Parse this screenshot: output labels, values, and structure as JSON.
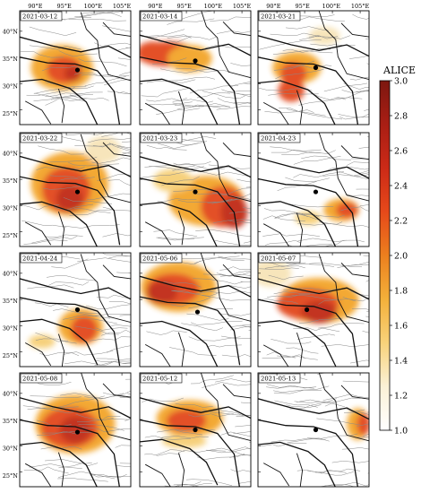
{
  "figure": {
    "colorbar": {
      "title": "ALICE",
      "min": 1.0,
      "max": 3.0,
      "ticks": [
        "1.0",
        "1.2",
        "1.4",
        "1.6",
        "1.8",
        "2.0",
        "2.2",
        "2.4",
        "2.6",
        "2.8",
        "3.0"
      ],
      "colors": [
        "#ffffff",
        "#fbf1d6",
        "#f8d27a",
        "#f3b03a",
        "#ec7f1e",
        "#e6491a",
        "#cc2a17",
        "#a91e14",
        "#7d1710"
      ]
    },
    "lon_labels": [
      "90°E",
      "95°E",
      "100°E",
      "105°E"
    ],
    "lat_labels": [
      "40°N",
      "35°N",
      "30°N",
      "25°N"
    ],
    "station_marker": "black-dot",
    "panels": [
      {
        "date": "2021-03-12"
      },
      {
        "date": "2021-03-14"
      },
      {
        "date": "2021-03-21"
      },
      {
        "date": "2021-03-22"
      },
      {
        "date": "2021-03-23"
      },
      {
        "date": "2021-04-23"
      },
      {
        "date": "2021-04-24"
      },
      {
        "date": "2021-05-06"
      },
      {
        "date": "2021-05-07"
      },
      {
        "date": "2021-05-08"
      },
      {
        "date": "2021-05-12"
      },
      {
        "date": "2021-05-13"
      }
    ]
  }
}
